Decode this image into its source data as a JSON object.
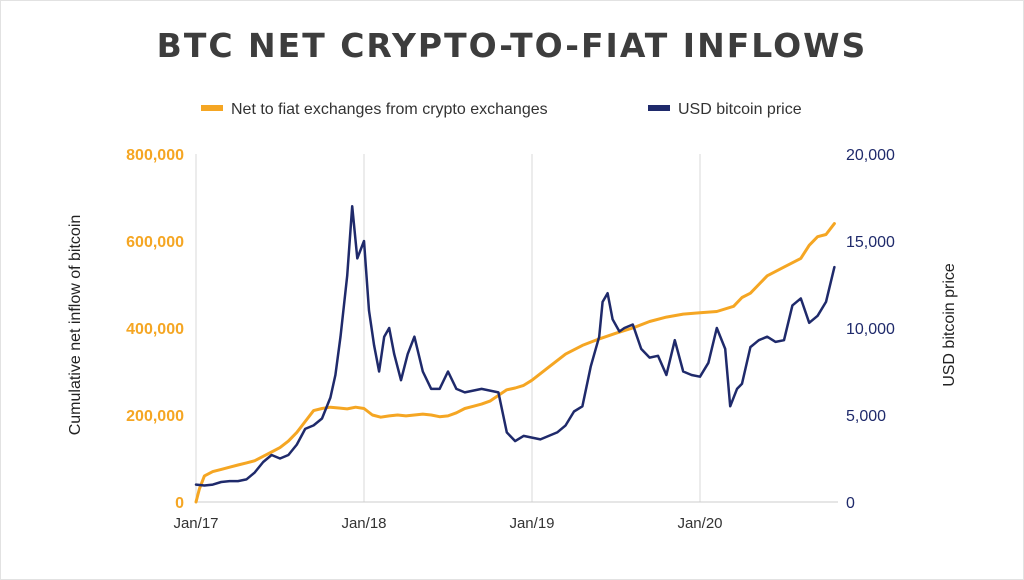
{
  "title": "BTC NET CRYPTO-TO-FIAT INFLOWS",
  "colors": {
    "orange": "#f5a623",
    "navy": "#1f2a6b",
    "title": "#3d3d3d",
    "grid": "#d9d9d9"
  },
  "chart_data": {
    "type": "line",
    "title": "BTC NET CRYPTO-TO-FIAT INFLOWS",
    "x_labels": [
      "Jan/17",
      "Jan/18",
      "Jan/19",
      "Jan/20"
    ],
    "x_range": [
      2017.0,
      2020.8
    ],
    "ylabel_left": "Cumulative net inflow of bitcoin",
    "ylabel_right": "USD bitcoin price",
    "ylim_left": [
      0,
      800000
    ],
    "ylim_right": [
      0,
      20000
    ],
    "yticks_left": [
      "0",
      "200,000",
      "400,000",
      "600,000",
      "800,000"
    ],
    "yticks_right": [
      "0",
      "5,000",
      "10,000",
      "15,000",
      "20,000"
    ],
    "legend_position": "top",
    "grid": "vertical",
    "series": [
      {
        "name": "Net to fiat exchanges from crypto exchanges",
        "axis": "left",
        "color": "#f5a623",
        "points": [
          [
            2017.0,
            0
          ],
          [
            2017.02,
            30000
          ],
          [
            2017.05,
            60000
          ],
          [
            2017.1,
            70000
          ],
          [
            2017.15,
            75000
          ],
          [
            2017.2,
            80000
          ],
          [
            2017.25,
            85000
          ],
          [
            2017.3,
            90000
          ],
          [
            2017.35,
            95000
          ],
          [
            2017.4,
            105000
          ],
          [
            2017.45,
            115000
          ],
          [
            2017.5,
            125000
          ],
          [
            2017.55,
            140000
          ],
          [
            2017.6,
            160000
          ],
          [
            2017.65,
            185000
          ],
          [
            2017.7,
            210000
          ],
          [
            2017.75,
            215000
          ],
          [
            2017.8,
            218000
          ],
          [
            2017.85,
            216000
          ],
          [
            2017.9,
            214000
          ],
          [
            2017.95,
            218000
          ],
          [
            2018.0,
            215000
          ],
          [
            2018.05,
            200000
          ],
          [
            2018.1,
            195000
          ],
          [
            2018.15,
            198000
          ],
          [
            2018.2,
            200000
          ],
          [
            2018.25,
            198000
          ],
          [
            2018.3,
            200000
          ],
          [
            2018.35,
            202000
          ],
          [
            2018.4,
            200000
          ],
          [
            2018.45,
            196000
          ],
          [
            2018.5,
            198000
          ],
          [
            2018.55,
            205000
          ],
          [
            2018.6,
            215000
          ],
          [
            2018.65,
            220000
          ],
          [
            2018.7,
            225000
          ],
          [
            2018.75,
            232000
          ],
          [
            2018.8,
            245000
          ],
          [
            2018.85,
            258000
          ],
          [
            2018.9,
            262000
          ],
          [
            2018.95,
            268000
          ],
          [
            2019.0,
            280000
          ],
          [
            2019.1,
            310000
          ],
          [
            2019.2,
            340000
          ],
          [
            2019.3,
            360000
          ],
          [
            2019.4,
            375000
          ],
          [
            2019.5,
            388000
          ],
          [
            2019.6,
            400000
          ],
          [
            2019.7,
            415000
          ],
          [
            2019.8,
            425000
          ],
          [
            2019.9,
            432000
          ],
          [
            2020.0,
            435000
          ],
          [
            2020.1,
            438000
          ],
          [
            2020.2,
            450000
          ],
          [
            2020.25,
            470000
          ],
          [
            2020.3,
            480000
          ],
          [
            2020.35,
            500000
          ],
          [
            2020.4,
            520000
          ],
          [
            2020.5,
            540000
          ],
          [
            2020.6,
            560000
          ],
          [
            2020.65,
            590000
          ],
          [
            2020.7,
            610000
          ],
          [
            2020.75,
            615000
          ],
          [
            2020.8,
            640000
          ]
        ]
      },
      {
        "name": "USD bitcoin price",
        "axis": "right",
        "color": "#1f2a6b",
        "points": [
          [
            2017.0,
            1000
          ],
          [
            2017.05,
            950
          ],
          [
            2017.1,
            1000
          ],
          [
            2017.15,
            1150
          ],
          [
            2017.2,
            1200
          ],
          [
            2017.25,
            1200
          ],
          [
            2017.3,
            1300
          ],
          [
            2017.35,
            1700
          ],
          [
            2017.4,
            2300
          ],
          [
            2017.45,
            2700
          ],
          [
            2017.5,
            2500
          ],
          [
            2017.55,
            2700
          ],
          [
            2017.6,
            3300
          ],
          [
            2017.65,
            4200
          ],
          [
            2017.7,
            4400
          ],
          [
            2017.75,
            4800
          ],
          [
            2017.8,
            6000
          ],
          [
            2017.83,
            7300
          ],
          [
            2017.86,
            9500
          ],
          [
            2017.9,
            13000
          ],
          [
            2017.93,
            17000
          ],
          [
            2017.96,
            14000
          ],
          [
            2018.0,
            15000
          ],
          [
            2018.03,
            11000
          ],
          [
            2018.06,
            9000
          ],
          [
            2018.09,
            7500
          ],
          [
            2018.12,
            9500
          ],
          [
            2018.15,
            10000
          ],
          [
            2018.18,
            8500
          ],
          [
            2018.22,
            7000
          ],
          [
            2018.26,
            8500
          ],
          [
            2018.3,
            9500
          ],
          [
            2018.35,
            7500
          ],
          [
            2018.4,
            6500
          ],
          [
            2018.45,
            6500
          ],
          [
            2018.5,
            7500
          ],
          [
            2018.55,
            6500
          ],
          [
            2018.6,
            6300
          ],
          [
            2018.7,
            6500
          ],
          [
            2018.8,
            6300
          ],
          [
            2018.85,
            4000
          ],
          [
            2018.9,
            3500
          ],
          [
            2018.95,
            3800
          ],
          [
            2019.0,
            3700
          ],
          [
            2019.05,
            3600
          ],
          [
            2019.1,
            3800
          ],
          [
            2019.15,
            4000
          ],
          [
            2019.2,
            4400
          ],
          [
            2019.25,
            5200
          ],
          [
            2019.3,
            5500
          ],
          [
            2019.35,
            7800
          ],
          [
            2019.4,
            9500
          ],
          [
            2019.42,
            11500
          ],
          [
            2019.45,
            12000
          ],
          [
            2019.48,
            10500
          ],
          [
            2019.52,
            9800
          ],
          [
            2019.55,
            10000
          ],
          [
            2019.6,
            10200
          ],
          [
            2019.65,
            8800
          ],
          [
            2019.7,
            8300
          ],
          [
            2019.75,
            8400
          ],
          [
            2019.8,
            7300
          ],
          [
            2019.85,
            9300
          ],
          [
            2019.9,
            7500
          ],
          [
            2019.95,
            7300
          ],
          [
            2020.0,
            7200
          ],
          [
            2020.05,
            8000
          ],
          [
            2020.1,
            10000
          ],
          [
            2020.15,
            8800
          ],
          [
            2020.18,
            5500
          ],
          [
            2020.22,
            6500
          ],
          [
            2020.25,
            6800
          ],
          [
            2020.3,
            8900
          ],
          [
            2020.35,
            9300
          ],
          [
            2020.4,
            9500
          ],
          [
            2020.45,
            9200
          ],
          [
            2020.5,
            9300
          ],
          [
            2020.55,
            11300
          ],
          [
            2020.6,
            11700
          ],
          [
            2020.65,
            10300
          ],
          [
            2020.7,
            10700
          ],
          [
            2020.75,
            11500
          ],
          [
            2020.8,
            13500
          ]
        ]
      }
    ]
  }
}
